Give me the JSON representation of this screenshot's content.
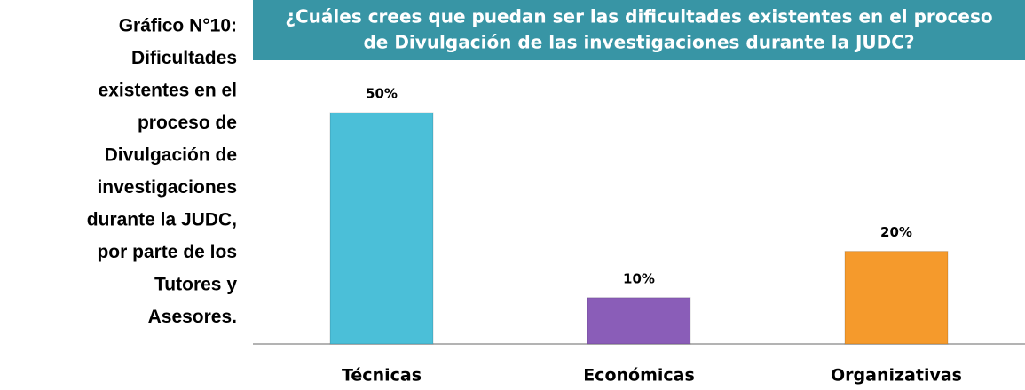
{
  "caption": [
    "Gráfico N°10:",
    "Dificultades",
    "existentes en el",
    "proceso de",
    "Divulgación de",
    "investigaciones",
    "durante la JUDC,",
    "por parte de los",
    "Tutores y",
    "Asesores."
  ],
  "chart_data": {
    "type": "bar",
    "title": [
      "¿Cuáles crees que puedan ser las dificultades existentes en el proceso",
      "de Divulgación de las investigaciones durante la JUDC?"
    ],
    "categories": [
      "Técnicas",
      "Económicas",
      "Organizativas"
    ],
    "values": [
      50,
      10,
      20
    ],
    "value_labels": [
      "50%",
      "10%",
      "20%"
    ],
    "colors": [
      "#4bbfd8",
      "#8a5db8",
      "#f59a2c"
    ]
  }
}
